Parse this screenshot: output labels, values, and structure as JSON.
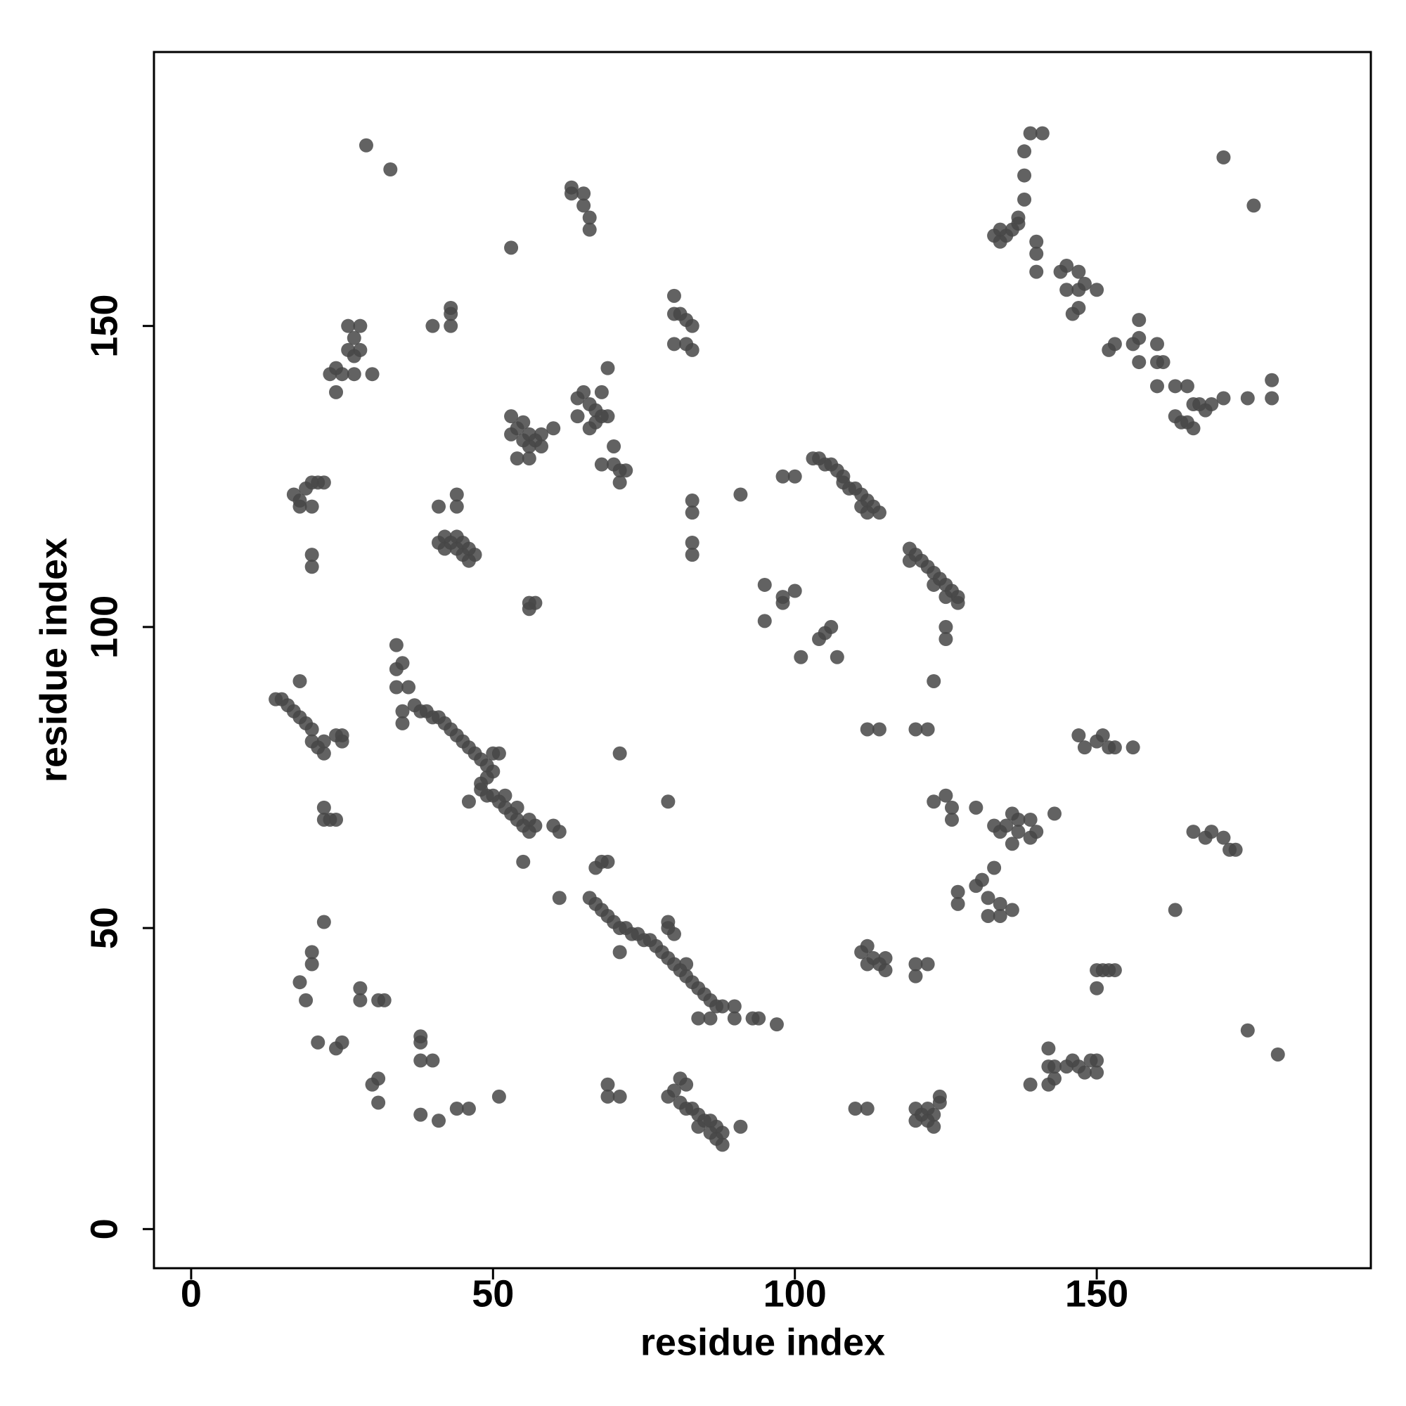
{
  "chart_data": {
    "type": "scatter",
    "xlabel": "residue index",
    "ylabel": "residue index",
    "color": "#474747",
    "x": [
      37,
      38,
      39,
      40,
      41,
      42,
      43,
      44,
      45,
      46,
      47,
      48,
      49,
      50,
      50,
      51,
      49,
      48,
      48,
      49,
      50,
      51,
      52,
      52,
      53,
      54,
      54,
      55,
      56,
      56,
      57,
      35,
      35,
      34,
      36,
      34,
      35,
      34,
      46,
      55,
      14,
      15,
      16,
      17,
      18,
      18,
      19,
      20,
      20,
      21,
      22,
      22,
      24,
      25,
      25,
      22,
      22,
      23,
      24,
      66,
      67,
      68,
      69,
      70,
      71,
      72,
      73,
      74,
      75,
      76,
      77,
      78,
      79,
      80,
      81,
      82,
      83,
      84,
      85,
      86,
      87,
      88,
      79,
      79,
      80,
      82,
      67,
      68,
      69,
      71,
      84,
      86,
      90,
      90,
      93,
      94,
      97,
      61,
      61,
      60,
      79,
      80,
      81,
      81,
      82,
      82,
      83,
      84,
      84,
      85,
      86,
      86,
      87,
      87,
      88,
      88,
      91,
      103,
      104,
      105,
      106,
      107,
      108,
      108,
      109,
      110,
      111,
      111,
      112,
      112,
      113,
      114,
      98,
      100,
      91,
      119,
      119,
      120,
      121,
      122,
      123,
      123,
      124,
      125,
      125,
      126,
      127,
      127,
      125,
      125,
      123,
      133,
      134,
      134,
      135,
      136,
      137,
      137,
      138,
      138,
      138,
      139,
      141,
      140,
      140,
      140,
      144,
      145,
      145,
      146,
      147,
      147,
      148,
      147,
      150,
      152,
      153,
      156,
      157,
      157,
      157,
      160,
      160,
      161,
      160,
      163,
      163,
      164,
      165,
      165,
      166,
      166,
      167,
      168,
      169,
      171,
      175,
      179,
      179,
      171,
      176,
      53,
      53,
      54,
      55,
      55,
      56,
      56,
      57,
      58,
      58,
      60,
      54,
      56,
      64,
      64,
      65,
      66,
      66,
      67,
      67,
      68,
      68,
      69,
      69,
      70,
      70,
      71,
      71,
      72,
      68,
      41,
      42,
      42,
      43,
      44,
      44,
      45,
      45,
      46,
      46,
      47,
      41,
      44,
      44,
      17,
      18,
      18,
      19,
      20,
      20,
      21,
      22,
      20,
      20,
      23,
      24,
      24,
      25,
      26,
      26,
      27,
      27,
      28,
      28,
      27,
      30,
      29,
      33,
      40,
      43,
      43,
      43,
      63,
      63,
      65,
      65,
      66,
      66,
      53,
      80,
      80,
      80,
      81,
      82,
      82,
      83,
      83,
      83,
      83,
      83,
      83,
      56,
      57,
      56,
      95,
      95,
      98,
      98,
      100,
      101,
      104,
      105,
      106,
      107,
      112,
      114,
      120,
      122,
      79,
      71,
      123,
      125,
      126,
      126,
      130,
      133,
      134,
      135,
      136,
      137,
      136,
      137,
      139,
      139,
      140,
      143,
      133,
      131,
      130,
      132,
      134,
      134,
      136,
      127,
      127,
      132,
      112,
      111,
      113,
      114,
      115,
      115,
      112,
      120,
      122,
      120,
      147,
      148,
      150,
      151,
      152,
      153,
      156,
      150,
      151,
      152,
      153,
      150,
      163,
      166,
      168,
      169,
      171,
      172,
      173,
      175,
      180,
      142,
      142,
      143,
      142,
      143,
      145,
      146,
      147,
      148,
      149,
      150,
      150,
      139,
      120,
      120,
      121,
      122,
      122,
      123,
      123,
      124,
      124,
      110,
      112,
      22,
      20,
      20,
      18,
      19,
      21,
      24,
      25,
      28,
      28,
      31,
      32,
      30,
      31,
      31,
      38,
      38,
      38,
      40,
      38,
      41,
      44,
      46,
      51,
      69,
      69,
      71
    ],
    "values": [
      87,
      86,
      86,
      85,
      85,
      84,
      83,
      82,
      81,
      80,
      79,
      78,
      77,
      76,
      79,
      79,
      75,
      74,
      73,
      72,
      72,
      71,
      70,
      72,
      69,
      68,
      70,
      67,
      66,
      68,
      67,
      84,
      86,
      90,
      90,
      93,
      94,
      97,
      71,
      61,
      88,
      88,
      87,
      86,
      85,
      91,
      84,
      83,
      81,
      80,
      79,
      81,
      82,
      82,
      81,
      70,
      68,
      68,
      68,
      55,
      54,
      53,
      52,
      51,
      50,
      50,
      49,
      49,
      48,
      48,
      47,
      46,
      45,
      44,
      43,
      42,
      41,
      40,
      39,
      38,
      37,
      37,
      50,
      51,
      49,
      44,
      60,
      61,
      61,
      46,
      35,
      35,
      37,
      35,
      35,
      35,
      34,
      55,
      66,
      67,
      22,
      23,
      25,
      21,
      20,
      24,
      20,
      19,
      17,
      18,
      16,
      18,
      15,
      17,
      16,
      14,
      17,
      128,
      128,
      127,
      127,
      126,
      125,
      124,
      123,
      123,
      122,
      120,
      121,
      119,
      120,
      119,
      125,
      125,
      122,
      113,
      111,
      112,
      111,
      110,
      109,
      107,
      108,
      107,
      105,
      106,
      105,
      104,
      100,
      98,
      91,
      165,
      164,
      166,
      165,
      166,
      167,
      168,
      171,
      175,
      179,
      182,
      182,
      164,
      162,
      159,
      159,
      160,
      156,
      152,
      153,
      156,
      157,
      159,
      156,
      146,
      147,
      147,
      148,
      151,
      144,
      147,
      144,
      144,
      140,
      140,
      135,
      134,
      134,
      140,
      137,
      133,
      137,
      136,
      137,
      138,
      138,
      138,
      141,
      178,
      170,
      132,
      135,
      133,
      131,
      134,
      132,
      130,
      131,
      130,
      132,
      133,
      128,
      128,
      135,
      138,
      139,
      137,
      133,
      136,
      134,
      139,
      135,
      135,
      143,
      130,
      127,
      126,
      124,
      126,
      127,
      114,
      113,
      115,
      114,
      113,
      115,
      112,
      114,
      111,
      113,
      112,
      120,
      120,
      122,
      122,
      121,
      120,
      123,
      124,
      120,
      124,
      124,
      112,
      110,
      142,
      143,
      139,
      142,
      146,
      150,
      148,
      145,
      150,
      146,
      142,
      142,
      180,
      176,
      150,
      150,
      152,
      153,
      173,
      172,
      172,
      170,
      168,
      166,
      163,
      155,
      152,
      147,
      152,
      151,
      147,
      150,
      146,
      121,
      119,
      114,
      112,
      104,
      104,
      103,
      107,
      101,
      105,
      104,
      106,
      95,
      98,
      99,
      100,
      95,
      83,
      83,
      83,
      83,
      71,
      79,
      71,
      72,
      70,
      68,
      70,
      67,
      66,
      67,
      69,
      66,
      64,
      68,
      65,
      68,
      66,
      69,
      60,
      58,
      57,
      55,
      54,
      52,
      53,
      56,
      54,
      52,
      47,
      46,
      45,
      44,
      43,
      45,
      44,
      44,
      44,
      42,
      82,
      80,
      81,
      82,
      80,
      80,
      80,
      43,
      43,
      43,
      43,
      40,
      53,
      66,
      65,
      66,
      65,
      63,
      63,
      33,
      29,
      30,
      27,
      25,
      24,
      27,
      27,
      28,
      27,
      26,
      28,
      28,
      26,
      24,
      20,
      18,
      19,
      18,
      20,
      17,
      19,
      21,
      22,
      20,
      20,
      51,
      46,
      44,
      41,
      38,
      31,
      30,
      31,
      40,
      38,
      38,
      38,
      24,
      25,
      21,
      32,
      31,
      28,
      28,
      19,
      18,
      20,
      20,
      22,
      24,
      22,
      22
    ],
    "xlim": [
      -6.16,
      195.4
    ],
    "ylim": [
      -6.5,
      195.5
    ],
    "xticks": [
      0,
      50,
      100,
      150
    ],
    "yticks": [
      0,
      50,
      100,
      150
    ]
  }
}
